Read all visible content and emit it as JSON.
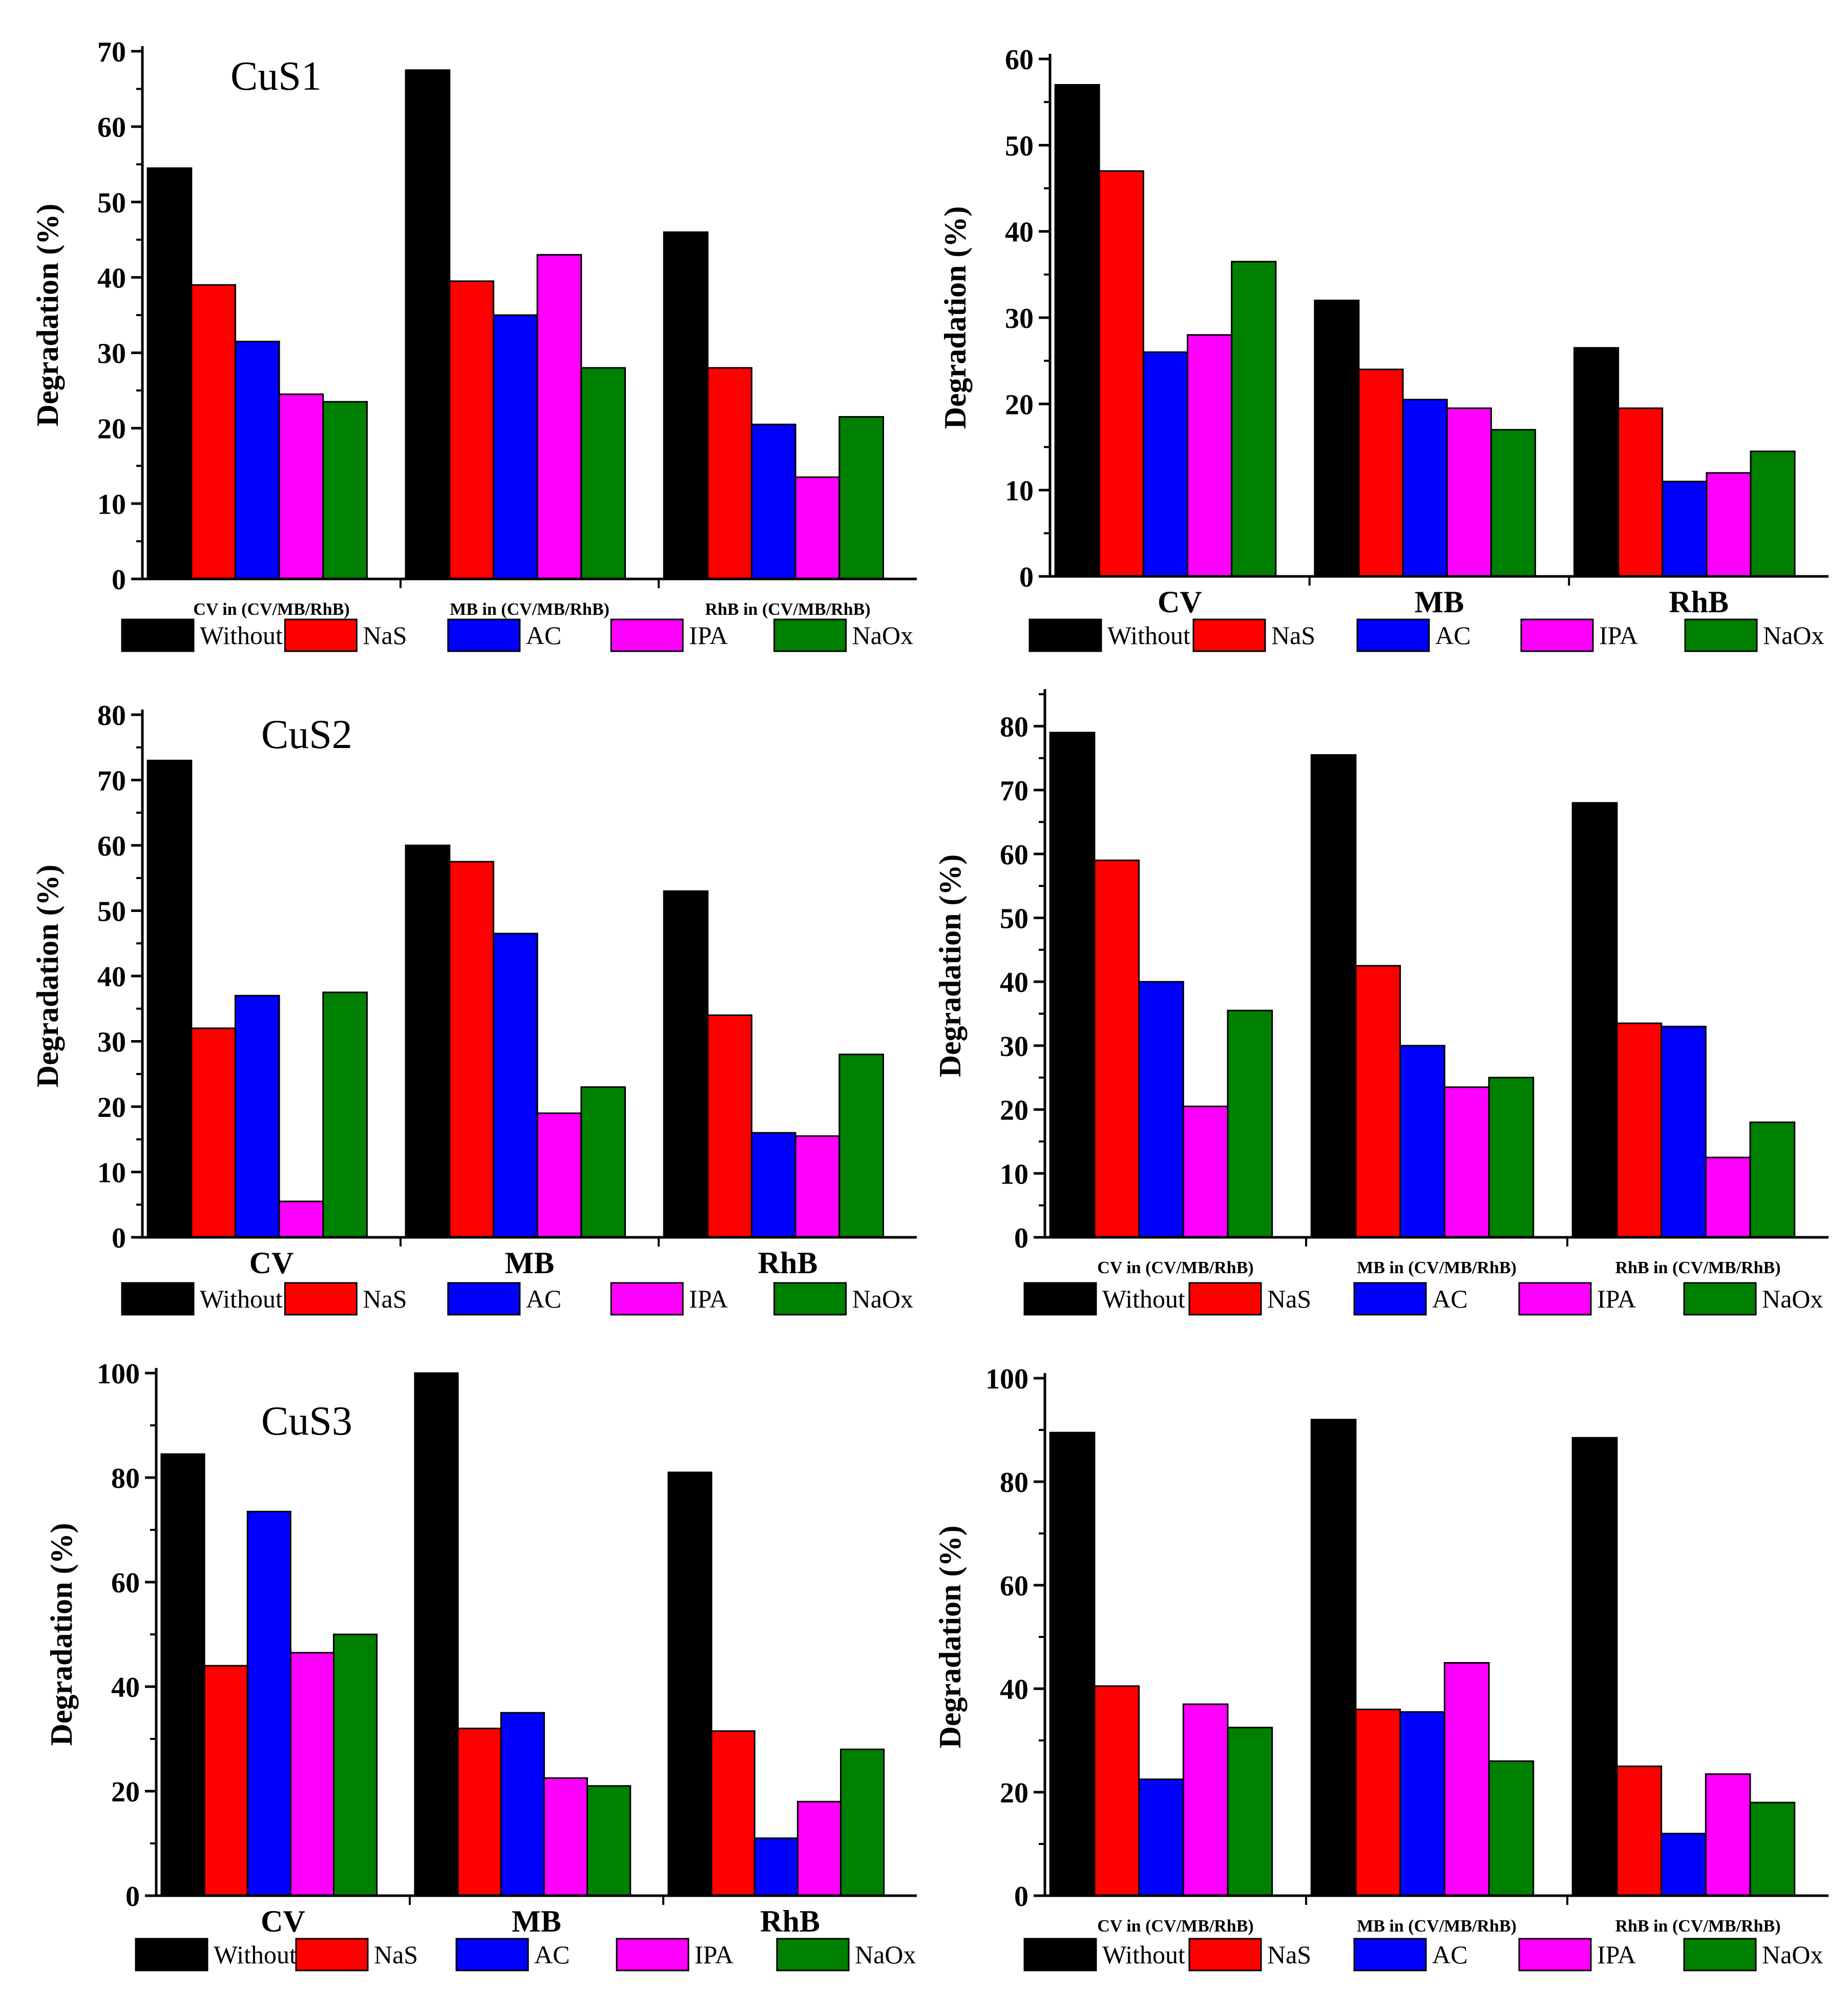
{
  "figure": {
    "series_colors": {
      "Without": "#000000",
      "NaS": "#ff0000",
      "AC": "#0000ff",
      "IPA": "#ff00ff",
      "NaOx": "#008000"
    }
  },
  "chart_data": [
    {
      "id": "cus1-ternary",
      "type": "bar",
      "title": "CuS1",
      "ylabel": "Degradation (%)",
      "xlabel": "",
      "ylim": [
        0,
        70
      ],
      "yticks": [
        0,
        10,
        20,
        30,
        40,
        50,
        60,
        70
      ],
      "categories": [
        "CV in (CV/MB/RhB)",
        "MB in (CV/MB/RhB)",
        "RhB in (CV/MB/RhB)"
      ],
      "series": [
        {
          "name": "Without",
          "values": [
            54.5,
            67.5,
            46
          ]
        },
        {
          "name": "NaS",
          "values": [
            39,
            39.5,
            28
          ]
        },
        {
          "name": "AC",
          "values": [
            31.5,
            35,
            20.5
          ]
        },
        {
          "name": "IPA",
          "values": [
            24.5,
            43,
            13.5
          ]
        },
        {
          "name": "NaOx",
          "values": [
            23.5,
            28,
            21.5
          ]
        }
      ]
    },
    {
      "id": "cus1-single",
      "type": "bar",
      "title": "",
      "ylabel": "Degradation (%)",
      "xlabel": "",
      "ylim": [
        0,
        60
      ],
      "yticks": [
        0,
        10,
        20,
        30,
        40,
        50,
        60
      ],
      "categories": [
        "CV",
        "MB",
        "RhB"
      ],
      "series": [
        {
          "name": "Without",
          "values": [
            57,
            32,
            26.5
          ]
        },
        {
          "name": "NaS",
          "values": [
            47,
            24,
            19.5
          ]
        },
        {
          "name": "AC",
          "values": [
            26,
            20.5,
            11
          ]
        },
        {
          "name": "IPA",
          "values": [
            28,
            19.5,
            12
          ]
        },
        {
          "name": "NaOx",
          "values": [
            36.5,
            17,
            14.5
          ]
        }
      ]
    },
    {
      "id": "cus2-single",
      "type": "bar",
      "title": "CuS2",
      "ylabel": "Degradation (%)",
      "xlabel": "",
      "ylim": [
        0,
        80
      ],
      "yticks": [
        0,
        10,
        20,
        30,
        40,
        50,
        60,
        70,
        80
      ],
      "categories": [
        "CV",
        "MB",
        "RhB"
      ],
      "series": [
        {
          "name": "Without",
          "values": [
            73,
            60,
            53
          ]
        },
        {
          "name": "NaS",
          "values": [
            32,
            57.5,
            34
          ]
        },
        {
          "name": "AC",
          "values": [
            37,
            46.5,
            16
          ]
        },
        {
          "name": "IPA",
          "values": [
            5.5,
            19,
            15.5
          ]
        },
        {
          "name": "NaOx",
          "values": [
            37.5,
            23,
            28
          ]
        }
      ]
    },
    {
      "id": "cus2-ternary",
      "type": "bar",
      "title": "",
      "ylabel": "Degradation (%)",
      "xlabel": "",
      "ylim": [
        0,
        85
      ],
      "yticks": [
        0,
        10,
        20,
        30,
        40,
        50,
        60,
        70,
        80
      ],
      "categories": [
        "CV in (CV/MB/RhB)",
        "MB in (CV/MB/RhB)",
        "RhB in (CV/MB/RhB)"
      ],
      "series": [
        {
          "name": "Without",
          "values": [
            79,
            75.5,
            68
          ]
        },
        {
          "name": "NaS",
          "values": [
            59,
            42.5,
            33.5
          ]
        },
        {
          "name": "AC",
          "values": [
            40,
            30,
            33
          ]
        },
        {
          "name": "IPA",
          "values": [
            20.5,
            23.5,
            12.5
          ]
        },
        {
          "name": "NaOx",
          "values": [
            35.5,
            25,
            18
          ]
        }
      ]
    },
    {
      "id": "cus3-single",
      "type": "bar",
      "title": "CuS3",
      "ylabel": "Degradation (%)",
      "xlabel": "",
      "ylim": [
        0,
        100
      ],
      "yticks": [
        0,
        20,
        40,
        60,
        80,
        100
      ],
      "categories": [
        "CV",
        "MB",
        "RhB"
      ],
      "series": [
        {
          "name": "Without",
          "values": [
            84.5,
            100,
            81
          ]
        },
        {
          "name": "NaS",
          "values": [
            44,
            32,
            31.5
          ]
        },
        {
          "name": "AC",
          "values": [
            73.5,
            35,
            11
          ]
        },
        {
          "name": "IPA",
          "values": [
            46.5,
            22.5,
            18
          ]
        },
        {
          "name": "NaOx",
          "values": [
            50,
            21,
            28
          ]
        }
      ]
    },
    {
      "id": "cus3-ternary",
      "type": "bar",
      "title": "",
      "ylabel": "Degradation (%)",
      "xlabel": "",
      "ylim": [
        0,
        100
      ],
      "yticks": [
        0,
        20,
        40,
        60,
        80,
        100
      ],
      "categories": [
        "CV in (CV/MB/RhB)",
        "MB in (CV/MB/RhB)",
        "RhB in (CV/MB/RhB)"
      ],
      "series": [
        {
          "name": "Without",
          "values": [
            89.5,
            92,
            88.5
          ]
        },
        {
          "name": "NaS",
          "values": [
            40.5,
            36,
            25
          ]
        },
        {
          "name": "AC",
          "values": [
            22.5,
            35.5,
            12
          ]
        },
        {
          "name": "IPA",
          "values": [
            37,
            45,
            23.5
          ]
        },
        {
          "name": "NaOx",
          "values": [
            32.5,
            26,
            18
          ]
        }
      ]
    }
  ]
}
